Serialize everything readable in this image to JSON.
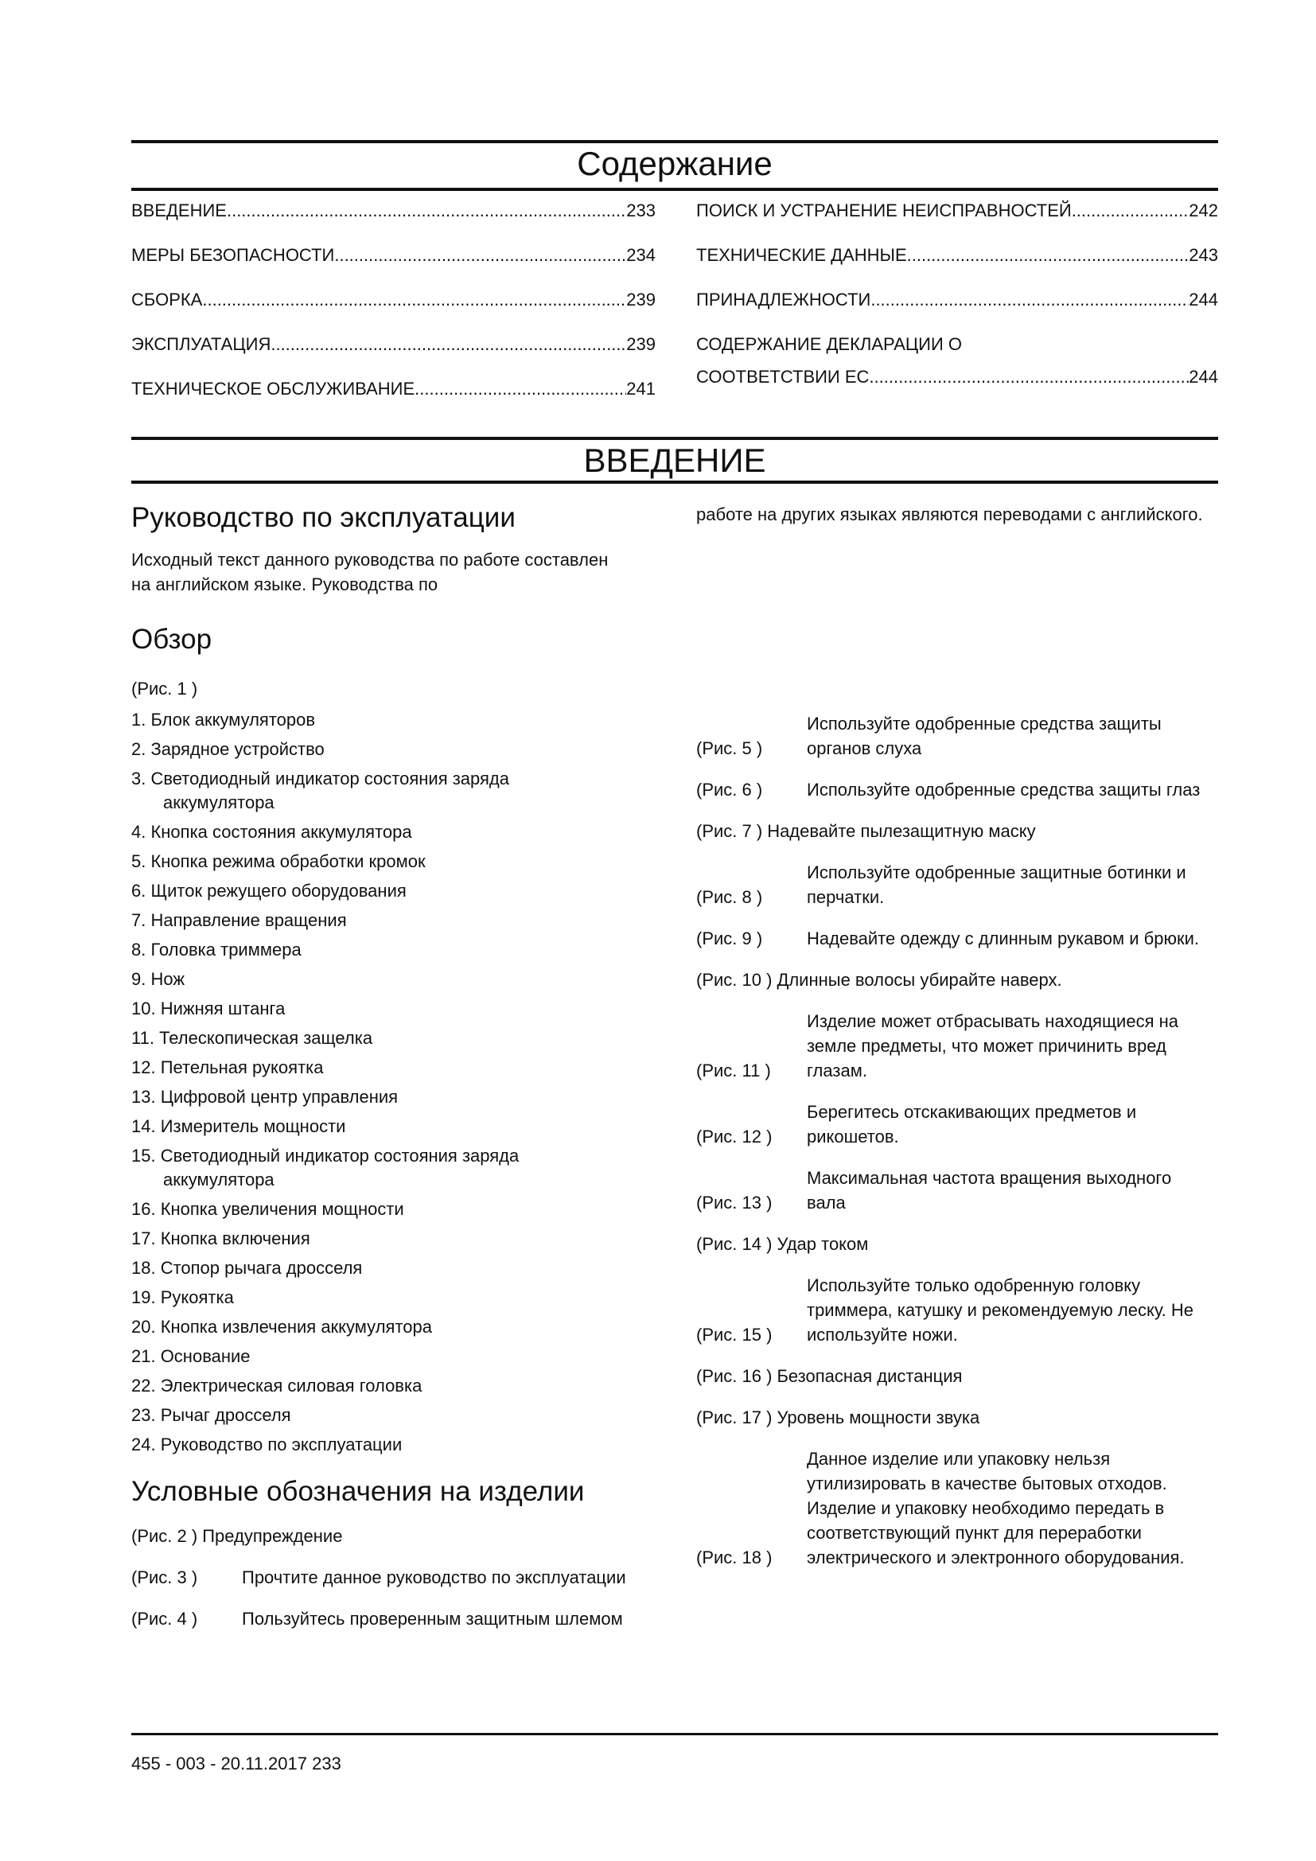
{
  "toc": {
    "title": "Содержание",
    "left": [
      {
        "label": "ВВЕДЕНИЕ",
        "page": "233"
      },
      {
        "label": "МЕРЫ БЕЗОПАСНОСТИ",
        "page": "234"
      },
      {
        "label": "СБОРКА",
        "page": "239"
      },
      {
        "label": "ЭКСПЛУАТАЦИЯ",
        "page": "239"
      },
      {
        "label": "ТЕХНИЧЕСКОЕ ОБСЛУЖИВАНИЕ",
        "page": "241"
      }
    ],
    "right": [
      {
        "label": "ПОИСК И УСТРАНЕНИЕ НЕИСПРАВНОСТЕЙ",
        "page": "242"
      },
      {
        "label": "ТЕХНИЧЕСКИЕ ДАННЫЕ",
        "page": "243"
      },
      {
        "label": "ПРИНАДЛЕЖНОСТИ",
        "page": "244"
      },
      {
        "label_line1": "СОДЕРЖАНИЕ ДЕКЛАРАЦИИ О",
        "label": "СООТВЕТСТВИИ ЕС",
        "page": "244"
      }
    ]
  },
  "intro": {
    "title": "ВВЕДЕНИЕ",
    "manual_heading": "Руководство по эксплуатации",
    "manual_text_left": "Исходный текст данного руководства по работе составлен на английском языке. Руководства по",
    "manual_text_right": "работе на других языках являются переводами с английского.",
    "overview_heading": "Обзор",
    "overview_fig": "(Рис. 1 )",
    "overview_items": [
      "1. Блок аккумуляторов",
      "2. Зарядное устройство",
      [
        "3. Светодиодный индикатор состояния заряда",
        "аккумулятора"
      ],
      "4.  Кнопка состояния аккумулятора",
      "5. Кнопка режима обработки кромок",
      "6. Щиток режущего оборудования",
      "7. Направление вращения",
      "8. Головка триммера",
      "9. Нож",
      "10. Нижняя штанга",
      "11. Телескопическая защелка",
      "12. Петельная рукоятка",
      "13. Цифровой центр управления",
      "14. Измеритель мощности",
      [
        "15. Светодиодный индикатор состояния заряда",
        "аккумулятора"
      ],
      "16. Кнопка увеличения мощности",
      "17. Кнопка включения",
      "18. Стопор рычага дросселя",
      "19. Рукоятка",
      "20. Кнопка извлечения аккумулятора",
      "21. Основание",
      "22. Электрическая силовая головка",
      "23. Рычаг дросселя",
      "24. Руководство по эксплуатации"
    ],
    "symbols_heading": "Условные обозначения на изделии",
    "symbols_left": [
      {
        "fig": "(Рис. 2 )",
        "text": "Предупреждение",
        "inline": true
      },
      {
        "fig": "(Рис. 3 )",
        "text": "Прочтите данное руководство по эксплуатации"
      },
      {
        "fig": "(Рис. 4 )",
        "text": "Пользуйтесь проверенным защитным шлемом"
      }
    ],
    "symbols_right": [
      {
        "fig": "(Рис. 5 )",
        "text": "Используйте одобренные средства защиты органов слуха"
      },
      {
        "fig": "(Рис. 6 )",
        "text": "Используйте одобренные средства защиты глаз"
      },
      {
        "fig": "(Рис. 7 )",
        "text": "Надевайте пылезащитную маску",
        "inline": true
      },
      {
        "fig": "(Рис. 8 )",
        "text": "Используйте одобренные защитные ботинки и перчатки."
      },
      {
        "fig": "(Рис. 9 )",
        "text": "Надевайте одежду с длинным рукавом и брюки."
      },
      {
        "fig": "(Рис. 10 )",
        "text": "Длинные волосы убирайте наверх.",
        "inline": true
      },
      {
        "fig": "(Рис. 11 )",
        "text": "Изделие может отбрасывать находящиеся на земле предметы, что может причинить вред глазам."
      },
      {
        "fig": "(Рис. 12 )",
        "text": "Берегитесь отскакивающих предметов и рикошетов."
      },
      {
        "fig": "(Рис. 13 )",
        "text": "Максимальная частота вращения выходного вала"
      },
      {
        "fig": "(Рис. 14 )",
        "text": "Удар током",
        "inline": true
      },
      {
        "fig": "(Рис. 15 )",
        "text": "Используйте только одобренную головку триммера, катушку и рекомендуемую леску. Не используйте ножи."
      },
      {
        "fig": "(Рис. 16 )",
        "text": "Безопасная дистанция",
        "inline": true
      },
      {
        "fig": "(Рис. 17 )",
        "text": "Уровень мощности звука",
        "inline": true
      },
      {
        "fig": "(Рис. 18 )",
        "text": "Данное изделие или упаковку нельзя утилизировать в качестве бытовых отходов. Изделие и упаковку необходимо передать в соответствующий пункт для переработки электрического и электронного оборудования."
      }
    ]
  },
  "footer": {
    "text": "455 - 003 - 20.11.2017 233"
  }
}
